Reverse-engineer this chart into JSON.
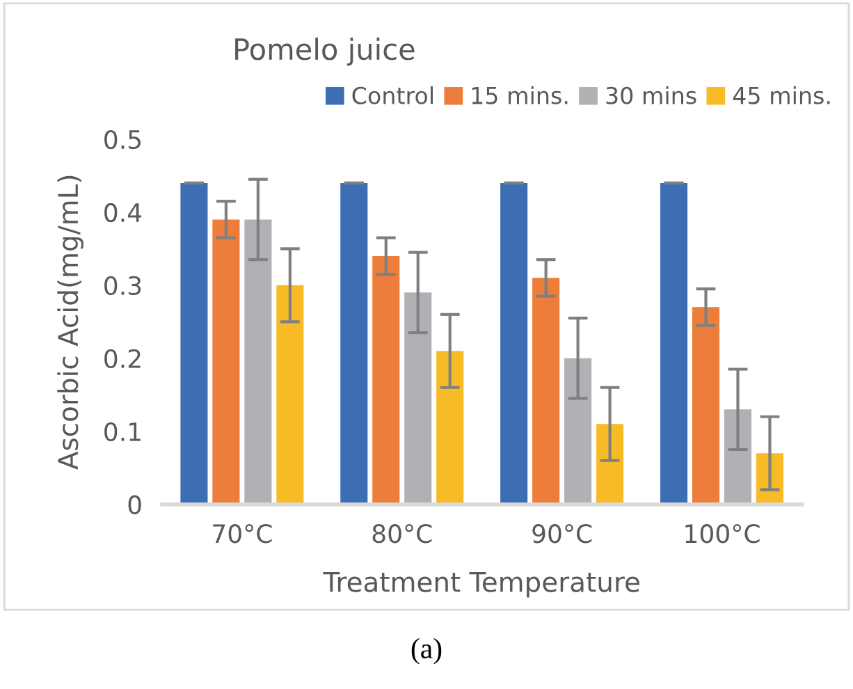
{
  "chart_data": {
    "type": "bar",
    "title": "Pomelo juice",
    "xlabel": "Treatment Temperature",
    "ylabel": "Ascorbic Acid(mg/mL)",
    "categories": [
      "70°C",
      "80°C",
      "90°C",
      "100°C"
    ],
    "series": [
      {
        "name": "Control",
        "color": "#3d6eb4",
        "values": [
          0.44,
          0.44,
          0.44,
          0.44
        ],
        "errors": [
          0,
          0,
          0,
          0
        ]
      },
      {
        "name": "15 mins.",
        "color": "#ec7d3a",
        "values": [
          0.39,
          0.34,
          0.31,
          0.27
        ],
        "errors": [
          0.025,
          0.025,
          0.025,
          0.025
        ]
      },
      {
        "name": "30 mins",
        "color": "#b0b1b4",
        "values": [
          0.39,
          0.29,
          0.2,
          0.13
        ],
        "errors": [
          0.055,
          0.055,
          0.055,
          0.055
        ]
      },
      {
        "name": "45 mins.",
        "color": "#f7bb25",
        "values": [
          0.3,
          0.21,
          0.11,
          0.07
        ],
        "errors": [
          0.05,
          0.05,
          0.05,
          0.05
        ]
      }
    ],
    "ylim": [
      0,
      0.5
    ],
    "yticks": [
      0,
      0.1,
      0.2,
      0.3,
      0.4,
      0.5
    ],
    "grid": false,
    "legend": "top right",
    "annotations": [
      "(a)"
    ]
  }
}
